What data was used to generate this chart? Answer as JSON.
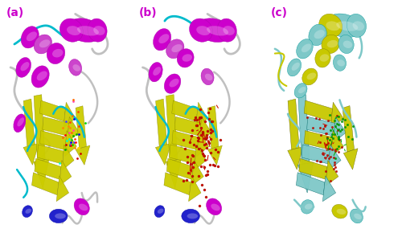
{
  "figure_width": 5.0,
  "figure_height": 2.95,
  "dpi": 100,
  "background_color": "#ffffff",
  "panels": [
    "(a)",
    "(b)",
    "(c)"
  ],
  "panel_label_color": "#cc00cc",
  "panel_label_fontsize": 10,
  "panel_label_fontweight": "bold",
  "panel_bg": "#ffffff",
  "colors": {
    "helix_purple": "#cc00cc",
    "helix_purple2": "#9900bb",
    "sheet_yellow": "#cccc00",
    "sheet_yellow2": "#aaaa00",
    "loop_gray": "#c8c8c8",
    "loop_cyan": "#00bbcc",
    "loop_cyan2": "#009999",
    "blue": "#2222cc",
    "blue2": "#0000aa",
    "red": "#cc2200",
    "green": "#00aa00",
    "orange": "#ff8800",
    "white": "#ffffff",
    "cyan_yellow1": "#7ec8c8",
    "cyan_yellow2": "#c8c800"
  }
}
